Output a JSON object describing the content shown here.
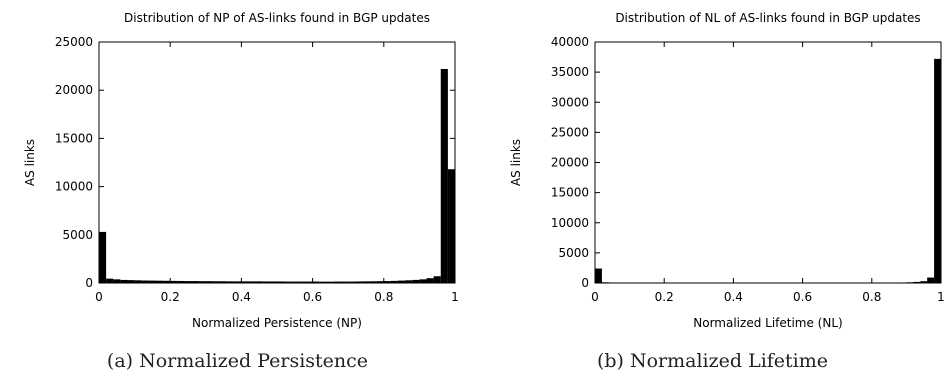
{
  "chart_data": [
    {
      "type": "bar",
      "title": "Distribution of NP of AS-links found in BGP updates",
      "xlabel": "Normalized Persistence (NP)",
      "ylabel": "AS links",
      "caption": "(a) Normalized Persistence",
      "xlim": [
        0,
        1
      ],
      "ylim": [
        0,
        25000
      ],
      "xticks": [
        "0",
        "0.2",
        "0.4",
        "0.6",
        "0.8",
        "1"
      ],
      "yticks": [
        "0",
        "5000",
        "10000",
        "15000",
        "20000",
        "25000"
      ],
      "grid": false,
      "bin_width": 0.02,
      "x": [
        0.01,
        0.03,
        0.05,
        0.07,
        0.09,
        0.11,
        0.13,
        0.15,
        0.17,
        0.19,
        0.21,
        0.23,
        0.25,
        0.27,
        0.29,
        0.31,
        0.33,
        0.35,
        0.37,
        0.39,
        0.41,
        0.43,
        0.45,
        0.47,
        0.49,
        0.51,
        0.53,
        0.55,
        0.57,
        0.59,
        0.61,
        0.63,
        0.65,
        0.67,
        0.69,
        0.71,
        0.73,
        0.75,
        0.77,
        0.79,
        0.81,
        0.83,
        0.85,
        0.87,
        0.89,
        0.91,
        0.93,
        0.95,
        0.97,
        0.99
      ],
      "values": [
        5300,
        450,
        380,
        320,
        300,
        280,
        260,
        250,
        240,
        230,
        220,
        210,
        200,
        200,
        190,
        190,
        180,
        180,
        170,
        170,
        170,
        170,
        170,
        160,
        160,
        160,
        150,
        150,
        150,
        150,
        150,
        140,
        140,
        150,
        150,
        150,
        160,
        170,
        180,
        190,
        200,
        220,
        250,
        280,
        320,
        380,
        500,
        700,
        22200,
        11800
      ]
    },
    {
      "type": "bar",
      "title": "Distribution of NL of AS-links found in BGP updates",
      "xlabel": "Normalized Lifetime (NL)",
      "ylabel": "AS links",
      "caption": "(b) Normalized Lifetime",
      "xlim": [
        0,
        1
      ],
      "ylim": [
        0,
        40000
      ],
      "xticks": [
        "0",
        "0.2",
        "0.4",
        "0.6",
        "0.8",
        "1"
      ],
      "yticks": [
        "0",
        "5000",
        "10000",
        "15000",
        "20000",
        "25000",
        "30000",
        "35000",
        "40000"
      ],
      "grid": false,
      "bin_width": 0.02,
      "x": [
        0.01,
        0.03,
        0.05,
        0.07,
        0.09,
        0.11,
        0.13,
        0.15,
        0.17,
        0.19,
        0.21,
        0.23,
        0.25,
        0.27,
        0.29,
        0.31,
        0.33,
        0.35,
        0.37,
        0.39,
        0.41,
        0.43,
        0.45,
        0.47,
        0.49,
        0.51,
        0.53,
        0.55,
        0.57,
        0.59,
        0.61,
        0.63,
        0.65,
        0.67,
        0.69,
        0.71,
        0.73,
        0.75,
        0.77,
        0.79,
        0.81,
        0.83,
        0.85,
        0.87,
        0.89,
        0.91,
        0.93,
        0.95,
        0.97,
        0.99
      ],
      "values": [
        2400,
        120,
        90,
        70,
        60,
        60,
        50,
        50,
        50,
        50,
        50,
        50,
        40,
        40,
        40,
        40,
        40,
        40,
        40,
        40,
        40,
        40,
        40,
        40,
        40,
        40,
        40,
        40,
        40,
        40,
        40,
        40,
        40,
        40,
        40,
        40,
        40,
        40,
        40,
        40,
        50,
        50,
        60,
        70,
        90,
        120,
        180,
        300,
        900,
        37200
      ]
    }
  ]
}
